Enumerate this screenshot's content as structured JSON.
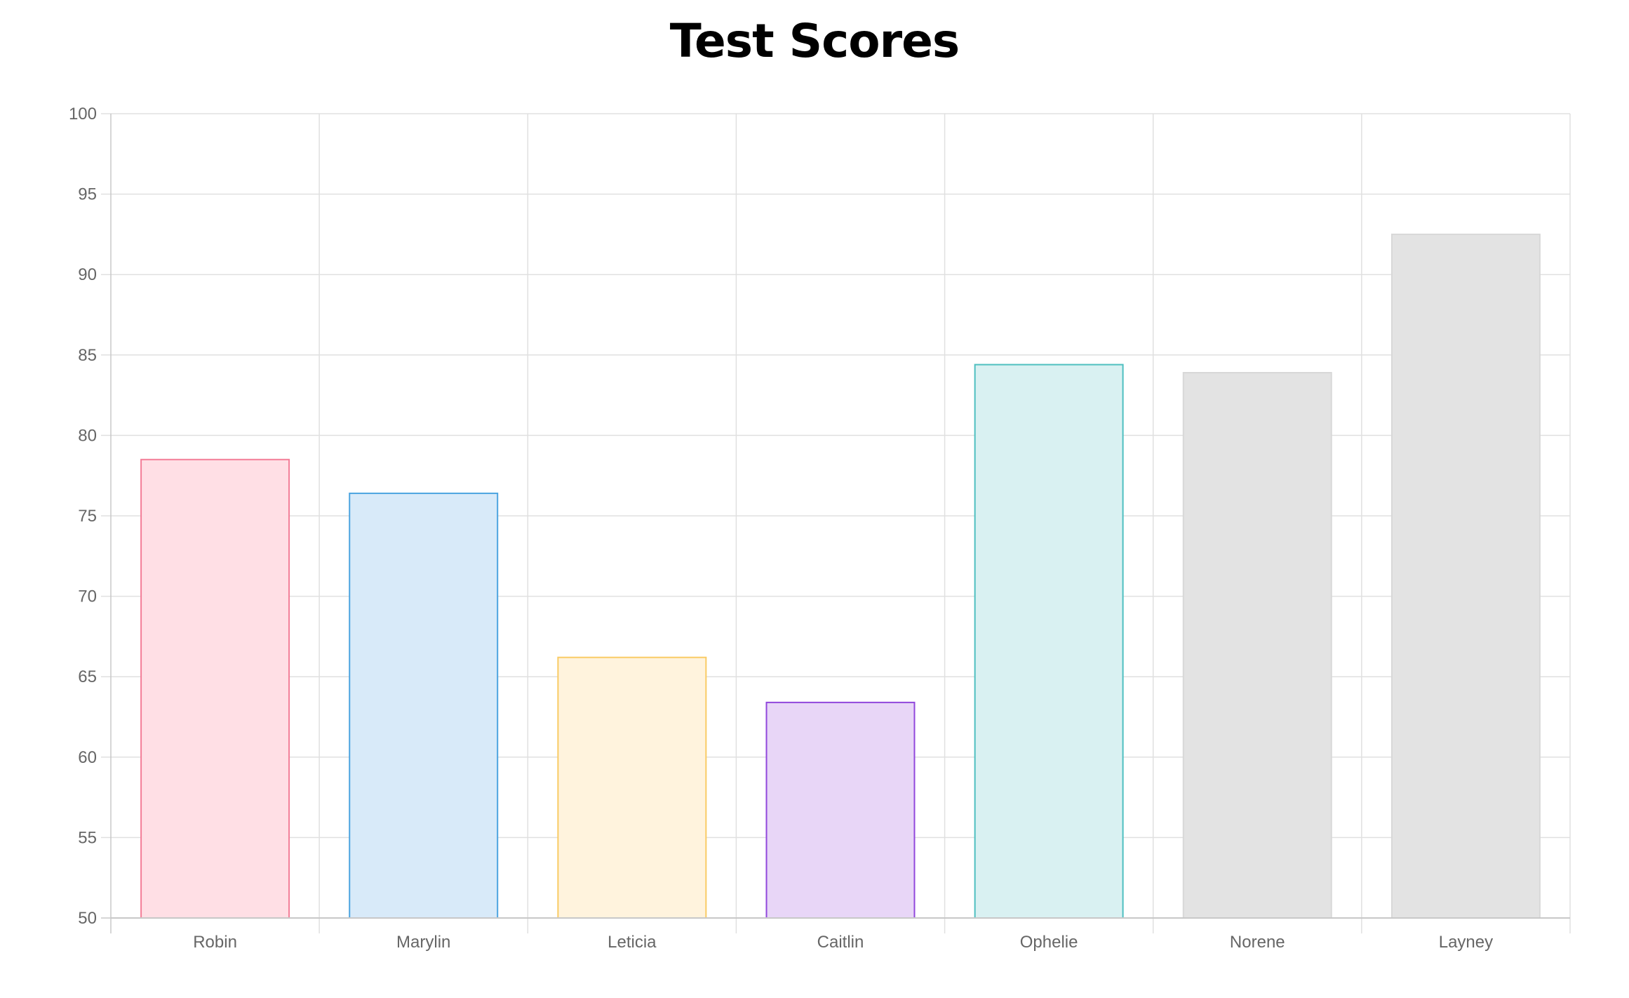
{
  "chart_data": {
    "type": "bar",
    "title": "Test Scores",
    "xlabel": "",
    "ylabel": "",
    "categories": [
      "Robin",
      "Marylin",
      "Leticia",
      "Caitlin",
      "Ophelie",
      "Norene",
      "Layney"
    ],
    "values": [
      78.5,
      76.4,
      66.2,
      63.4,
      84.4,
      83.9,
      92.5
    ],
    "ylim": [
      50,
      100
    ],
    "yticks": [
      "50",
      "55",
      "60",
      "65",
      "70",
      "75",
      "80",
      "85",
      "90",
      "95",
      "100"
    ],
    "grid": true,
    "legend": "none",
    "bar_fill_colors": [
      "#ffdfe5",
      "#d8eaf9",
      "#fff3dd",
      "#e8d6f7",
      "#d9f1f2",
      "#e3e3e3",
      "#e3e3e3"
    ],
    "bar_border_colors": [
      "#f37e98",
      "#4ca4e0",
      "#f9cb65",
      "#9147dc",
      "#4ebfc0",
      "#d8d8d8",
      "#d8d8d8"
    ],
    "grid_color": "#e0e0e0",
    "axis_color": "#c8c8c8",
    "tick_color": "#666666"
  }
}
